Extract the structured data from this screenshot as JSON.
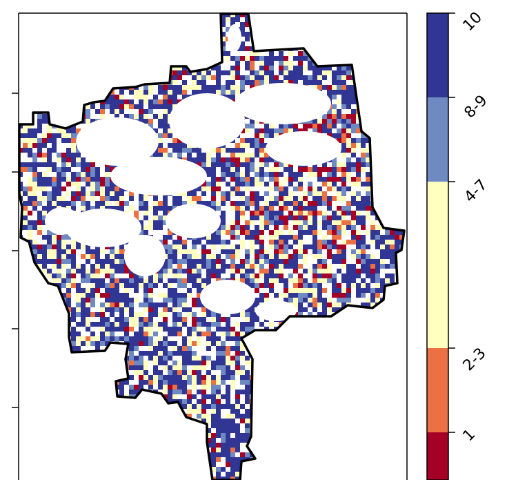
{
  "colorbar": {
    "categories": [
      {
        "label": "1",
        "color": "#a50026"
      },
      {
        "label": "2-3",
        "color": "#eb7043"
      },
      {
        "label": "4-7",
        "color": "#ffffbf"
      },
      {
        "label": "8-9",
        "color": "#6f8ac2"
      },
      {
        "label": "10",
        "color": "#313695"
      }
    ]
  },
  "colors": {
    "background": "#ffffff",
    "outline": "#000000"
  }
}
